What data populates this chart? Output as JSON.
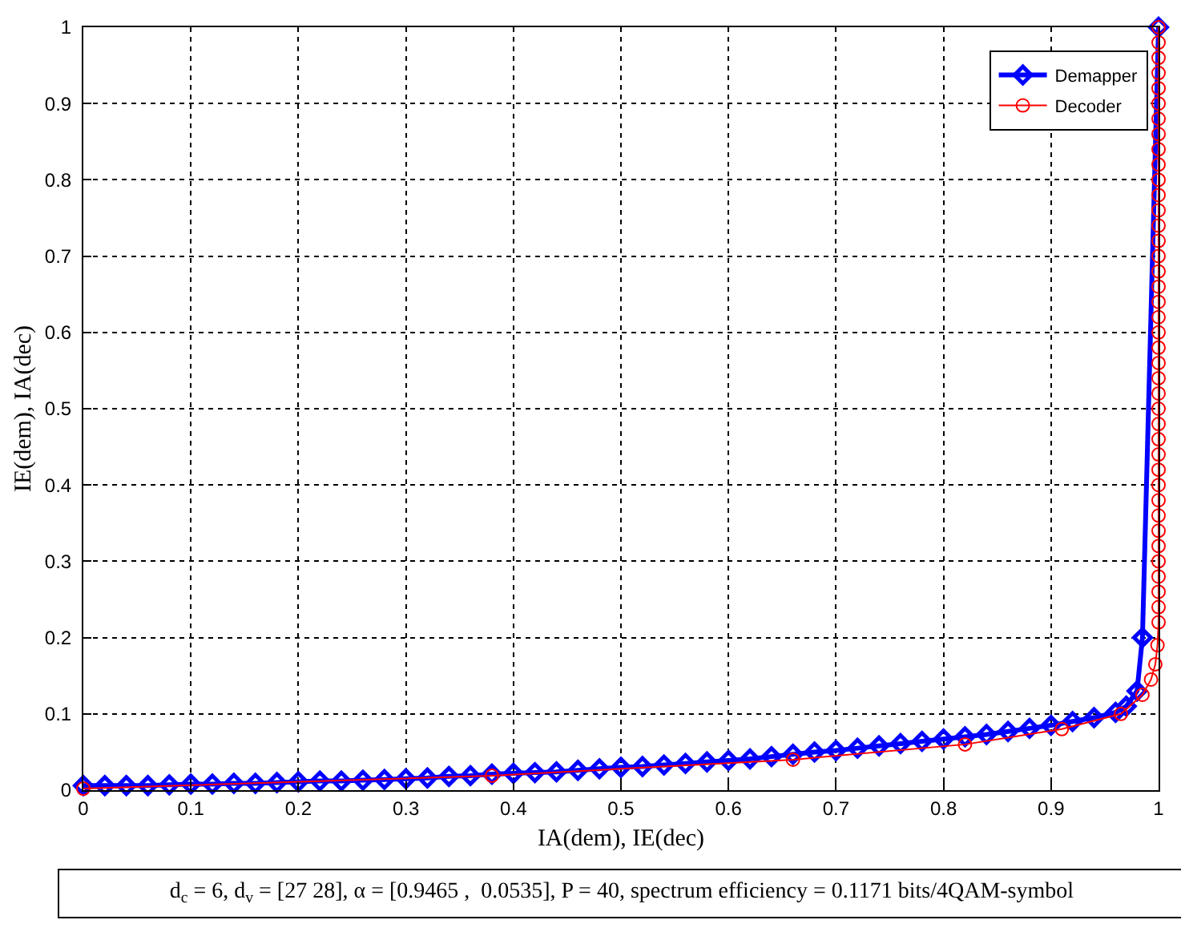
{
  "chart_data": {
    "type": "line",
    "xlabel": "IA(dem), IE(dec)",
    "ylabel": "IE(dem), IA(dec)",
    "xlim": [
      0,
      1
    ],
    "ylim": [
      0,
      1
    ],
    "xticks": [
      0,
      0.1,
      0.2,
      0.3,
      0.4,
      0.5,
      0.6,
      0.7,
      0.8,
      0.9,
      1
    ],
    "yticks": [
      0,
      0.1,
      0.2,
      0.3,
      0.4,
      0.5,
      0.6,
      0.7,
      0.8,
      0.9,
      1
    ],
    "grid": true,
    "legend": "top right",
    "annotations": [
      "d$_{c}$ = 6, d$_{v}$ = [27 28], α = [0.9465 ,  0.0535], P = 40, spectrum efficiency = 0.1171 bits/4QAM-symbol"
    ],
    "series": [
      {
        "name": "Demapper",
        "color": "#0000ff",
        "marker": "diamond",
        "x": [
          0,
          0.02,
          0.04,
          0.06,
          0.08,
          0.1,
          0.12,
          0.14,
          0.16,
          0.18,
          0.2,
          0.22,
          0.24,
          0.26,
          0.28,
          0.3,
          0.32,
          0.34,
          0.36,
          0.38,
          0.4,
          0.42,
          0.44,
          0.46,
          0.48,
          0.5,
          0.52,
          0.54,
          0.56,
          0.58,
          0.6,
          0.62,
          0.64,
          0.66,
          0.68,
          0.7,
          0.72,
          0.74,
          0.76,
          0.78,
          0.8,
          0.82,
          0.84,
          0.86,
          0.88,
          0.9,
          0.92,
          0.94,
          0.96,
          0.97,
          0.98,
          0.985,
          1.0
        ],
        "values": [
          0.006,
          0.006,
          0.006,
          0.006,
          0.007,
          0.008,
          0.008,
          0.009,
          0.009,
          0.01,
          0.011,
          0.012,
          0.012,
          0.013,
          0.014,
          0.015,
          0.016,
          0.018,
          0.019,
          0.021,
          0.022,
          0.023,
          0.024,
          0.026,
          0.028,
          0.03,
          0.031,
          0.033,
          0.035,
          0.037,
          0.039,
          0.041,
          0.044,
          0.047,
          0.05,
          0.052,
          0.055,
          0.058,
          0.061,
          0.064,
          0.067,
          0.07,
          0.073,
          0.077,
          0.081,
          0.085,
          0.09,
          0.095,
          0.102,
          0.11,
          0.13,
          0.2,
          1.0
        ]
      },
      {
        "name": "Decoder",
        "color": "#ff0000",
        "marker": "circle",
        "x": [
          0,
          0.38,
          0.66,
          0.82,
          0.91,
          0.965,
          0.985,
          0.993,
          0.997,
          0.999,
          1,
          1,
          1,
          1,
          1,
          1,
          1,
          1,
          1,
          1,
          1,
          1,
          1,
          1,
          1,
          1,
          1,
          1,
          1,
          1,
          1,
          1,
          1,
          1,
          1,
          1,
          1,
          1,
          1,
          1,
          1,
          1,
          1,
          1,
          1,
          1,
          1,
          1,
          1,
          1
        ],
        "values": [
          0.002,
          0.019,
          0.04,
          0.06,
          0.08,
          0.1,
          0.125,
          0.145,
          0.165,
          0.19,
          0.22,
          0.24,
          0.26,
          0.28,
          0.3,
          0.32,
          0.34,
          0.36,
          0.38,
          0.4,
          0.42,
          0.44,
          0.46,
          0.48,
          0.5,
          0.52,
          0.54,
          0.56,
          0.58,
          0.6,
          0.62,
          0.64,
          0.66,
          0.68,
          0.7,
          0.72,
          0.74,
          0.76,
          0.78,
          0.8,
          0.82,
          0.84,
          0.86,
          0.88,
          0.9,
          0.92,
          0.94,
          0.96,
          0.98,
          1.0
        ]
      }
    ]
  }
}
